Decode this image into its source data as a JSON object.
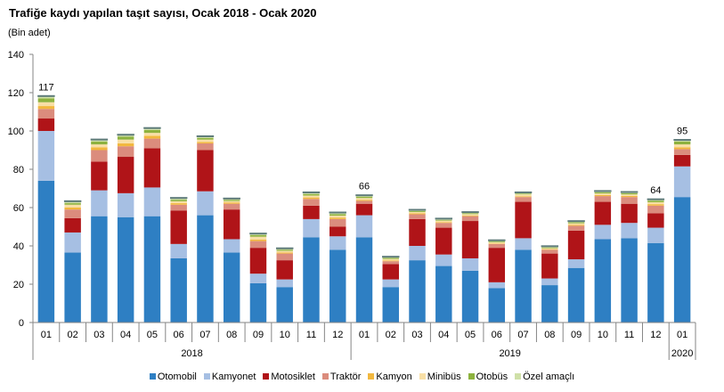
{
  "chart_data": {
    "type": "bar",
    "stacked": true,
    "title": "Trafiğe kaydı yapılan taşıt sayısı, Ocak 2018 - Ocak 2020",
    "ylabel": "(Bin adet)",
    "xlabel": "",
    "ylim": [
      0,
      140
    ],
    "yticks": [
      0,
      20,
      40,
      60,
      80,
      100,
      120,
      140
    ],
    "grid": false,
    "legend_position": "bottom",
    "categories": [
      "01",
      "02",
      "03",
      "04",
      "05",
      "06",
      "07",
      "08",
      "09",
      "10",
      "11",
      "12",
      "01",
      "02",
      "03",
      "04",
      "05",
      "06",
      "07",
      "08",
      "09",
      "10",
      "11",
      "12",
      "01"
    ],
    "year_groups": [
      {
        "label": "2018",
        "count": 12
      },
      {
        "label": "2019",
        "count": 12
      },
      {
        "label": "2020",
        "count": 1
      }
    ],
    "series": [
      {
        "name": "Otomobil",
        "color": "#2E7FC3",
        "values": [
          74,
          36.5,
          55.5,
          55,
          55.5,
          33.5,
          56,
          36.5,
          20.5,
          18.5,
          44.5,
          38,
          44.5,
          18.5,
          32.5,
          29.5,
          27,
          18,
          38,
          19.5,
          28.5,
          43.5,
          44,
          41.5,
          65.5
        ]
      },
      {
        "name": "Kamyonet",
        "color": "#A6BFE3",
        "values": [
          26,
          10.5,
          13.5,
          12.5,
          15,
          7.5,
          12.5,
          7,
          5,
          4,
          9.5,
          7,
          11.5,
          4,
          7.5,
          6,
          6.5,
          3,
          6,
          3.5,
          4.5,
          7.5,
          8,
          8,
          16
        ]
      },
      {
        "name": "Motosiklet",
        "color": "#B01418",
        "values": [
          6.5,
          7.5,
          15,
          19,
          20.5,
          17.5,
          21.5,
          15.5,
          13.5,
          10,
          7,
          5,
          6,
          8,
          14,
          14,
          19.5,
          18,
          19,
          13,
          15,
          12,
          10,
          7.5,
          6
        ]
      },
      {
        "name": "Traktör",
        "color": "#DB8C7D",
        "values": [
          5,
          4.5,
          6,
          5.5,
          5,
          3,
          3.5,
          3,
          3.5,
          3.5,
          3.5,
          4,
          1.5,
          1.5,
          2.5,
          2.5,
          2.5,
          2,
          2.5,
          2,
          2.5,
          3,
          3.5,
          4,
          3
        ]
      },
      {
        "name": "Kamyon",
        "color": "#F2B83F",
        "values": [
          1.5,
          1,
          1.5,
          1.5,
          1.5,
          0.8,
          0.8,
          0.7,
          0.8,
          0.6,
          0.8,
          0.8,
          0.5,
          0.4,
          0.5,
          0.4,
          0.4,
          0.3,
          0.4,
          0.3,
          0.5,
          0.6,
          0.6,
          0.8,
          1
        ]
      },
      {
        "name": "Minibüs",
        "color": "#F8DFA6",
        "values": [
          2,
          1.5,
          1.5,
          2,
          1.5,
          1,
          1.2,
          0.7,
          1.5,
          0.8,
          1,
          1,
          1,
          0.8,
          0.7,
          0.8,
          0.7,
          0.6,
          1,
          0.5,
          0.8,
          0.8,
          0.8,
          1,
          1.5
        ]
      },
      {
        "name": "Otobüs",
        "color": "#8DB23E",
        "values": [
          2,
          0.8,
          1.5,
          1.5,
          1.5,
          0.8,
          0.8,
          0.6,
          0.8,
          0.6,
          0.8,
          0.8,
          0.7,
          0.5,
          0.5,
          0.4,
          0.4,
          0.4,
          0.4,
          0.4,
          0.5,
          0.6,
          0.6,
          0.8,
          1.5
        ]
      },
      {
        "name": "Özel amaçlı",
        "color": "#CFE0A8",
        "values": [
          1,
          0.8,
          0.8,
          0.8,
          0.8,
          0.7,
          0.7,
          0.5,
          0.6,
          0.5,
          0.6,
          0.6,
          0.5,
          0.4,
          0.4,
          0.4,
          0.4,
          0.4,
          0.4,
          0.4,
          0.4,
          0.4,
          0.4,
          0.5,
          0.6
        ]
      }
    ],
    "top_cap_color": "#5E7B7A",
    "annotations": [
      {
        "index": 0,
        "text": "117"
      },
      {
        "index": 12,
        "text": "66"
      },
      {
        "index": 23,
        "text": "64"
      },
      {
        "index": 24,
        "text": "95"
      }
    ]
  }
}
